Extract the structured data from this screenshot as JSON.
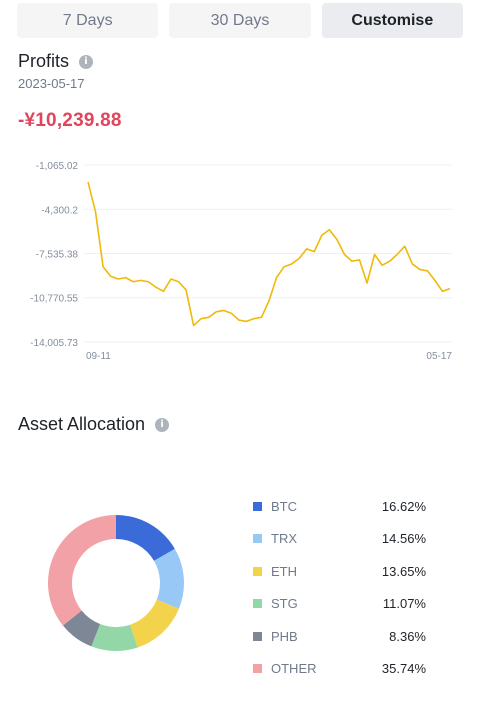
{
  "tabs": [
    {
      "label": "7 Days",
      "active": false
    },
    {
      "label": "30 Days",
      "active": false
    },
    {
      "label": "Customise",
      "active": true
    }
  ],
  "profits": {
    "title": "Profits",
    "info_icon": "info-icon",
    "date": "2023-05-17",
    "value": "-¥10,239.88",
    "value_color": "#e0455c"
  },
  "chart_data": [
    {
      "type": "line",
      "color": "#f0b90b",
      "grid": true,
      "y_ticks": [
        "-1,065.02",
        "-4,300.2",
        "-7,535.38",
        "-10,770.55",
        "-14,005.73"
      ],
      "y_tick_values": [
        -1065.02,
        -4300.2,
        -7535.38,
        -10770.55,
        -14005.73
      ],
      "ylim": [
        -14005.73,
        -1065.02
      ],
      "x_ticks": [
        "09-11",
        "05-17"
      ],
      "series": [
        {
          "values": [
            -2300,
            -4500,
            -8500,
            -9200,
            -9400,
            -9300,
            -9600,
            -9500,
            -9600,
            -10000,
            -10300,
            -9400,
            -9600,
            -10200,
            -12800,
            -12300,
            -12200,
            -11800,
            -11700,
            -11900,
            -12400,
            -12500,
            -12300,
            -12200,
            -11000,
            -9300,
            -8500,
            -8300,
            -7900,
            -7200,
            -7400,
            -6200,
            -5800,
            -6500,
            -7600,
            -8100,
            -8000,
            -9700,
            -7600,
            -8400,
            -8100,
            -7600,
            -7000,
            -8300,
            -8700,
            -8800,
            -9500,
            -10300,
            -10100
          ]
        }
      ]
    },
    {
      "type": "pie",
      "title": "Asset Allocation",
      "donut": true,
      "slices": [
        {
          "label": "BTC",
          "value": 16.62,
          "pct": "16.62%",
          "color": "#3a6bd8"
        },
        {
          "label": "TRX",
          "value": 14.56,
          "pct": "14.56%",
          "color": "#98c8f6"
        },
        {
          "label": "ETH",
          "value": 13.65,
          "pct": "13.65%",
          "color": "#f4d34c"
        },
        {
          "label": "STG",
          "value": 11.07,
          "pct": "11.07%",
          "color": "#93d7a8"
        },
        {
          "label": "PHB",
          "value": 8.36,
          "pct": "8.36%",
          "color": "#7e8796"
        },
        {
          "label": "OTHER",
          "value": 35.74,
          "pct": "35.74%",
          "color": "#f2a2a6"
        }
      ]
    }
  ]
}
